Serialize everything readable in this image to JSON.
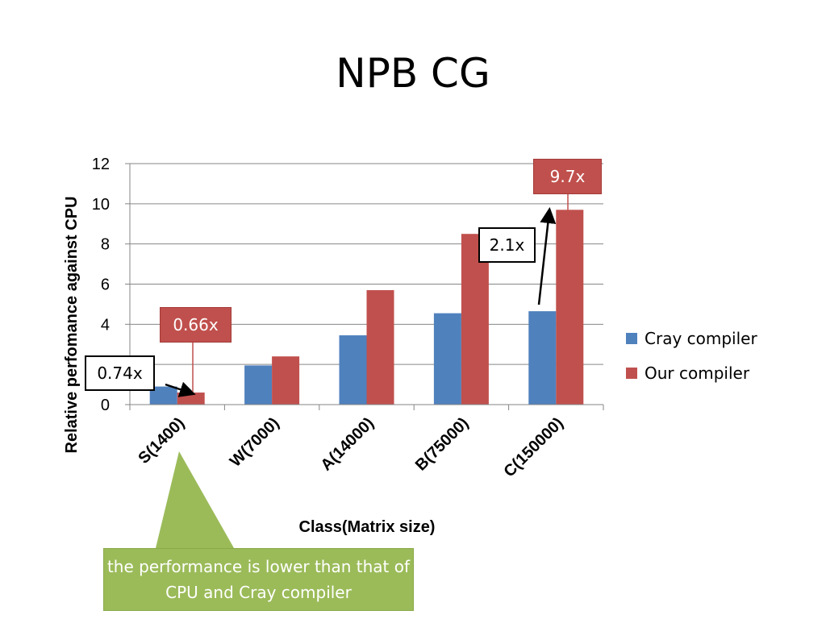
{
  "slide": {
    "title": "NPB CG",
    "note": "the performance is lower than that of CPU and Cray compiler"
  },
  "chart_data": {
    "type": "bar",
    "title": "",
    "xlabel": "Class(Matrix size)",
    "ylabel": "Relative perfomance against CPU",
    "ylim": [
      0,
      12
    ],
    "yticks": [
      0,
      2,
      4,
      6,
      8,
      10,
      12
    ],
    "grid": true,
    "legend_position": "right",
    "categories": [
      "S(1400)",
      "W(7000)",
      "A(14000)",
      "B(75000)",
      "C(150000)"
    ],
    "series": [
      {
        "name": "Cray compiler",
        "color": "#4f81bd",
        "values": [
          0.9,
          1.95,
          3.45,
          4.55,
          4.65
        ]
      },
      {
        "name": "Our compiler",
        "color": "#c0504d",
        "values": [
          0.6,
          2.4,
          5.7,
          8.5,
          9.7
        ]
      }
    ],
    "annotations": [
      {
        "text": "0.74x",
        "style": "white"
      },
      {
        "text": "0.66x",
        "style": "red"
      },
      {
        "text": "2.1x",
        "style": "white"
      },
      {
        "text": "9.7x",
        "style": "red"
      }
    ]
  }
}
